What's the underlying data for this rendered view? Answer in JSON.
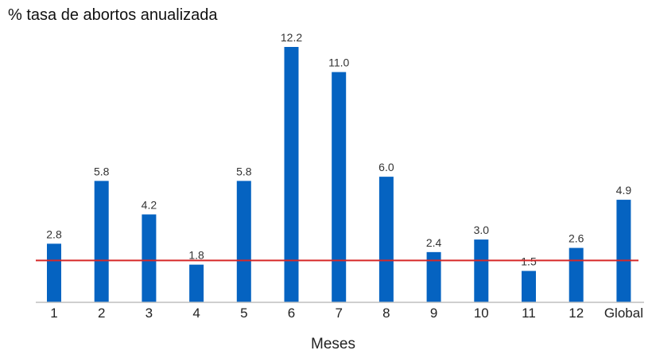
{
  "chart_data": {
    "type": "bar",
    "title": "% tasa de abortos anualizada",
    "xlabel": "Meses",
    "ylabel": "",
    "categories": [
      "1",
      "2",
      "3",
      "4",
      "5",
      "6",
      "7",
      "8",
      "9",
      "10",
      "11",
      "12",
      "Global"
    ],
    "values": [
      2.8,
      5.8,
      4.2,
      1.8,
      5.8,
      12.2,
      11.0,
      6.0,
      2.4,
      3.0,
      1.5,
      2.6,
      4.9
    ],
    "value_labels": [
      "2.8",
      "5.8",
      "4.2",
      "1.8",
      "5.8",
      "12.2",
      "11.0",
      "6.0",
      "2.4",
      "3.0",
      "1.5",
      "2.6",
      "4.9"
    ],
    "reference_line_value": 2.0,
    "ylim": [
      0,
      12.2
    ],
    "grid": false,
    "colors": {
      "bar": "#0563C1",
      "reference_line": "#D62828",
      "axis": "#BFBFBF",
      "label": "#333333"
    }
  }
}
